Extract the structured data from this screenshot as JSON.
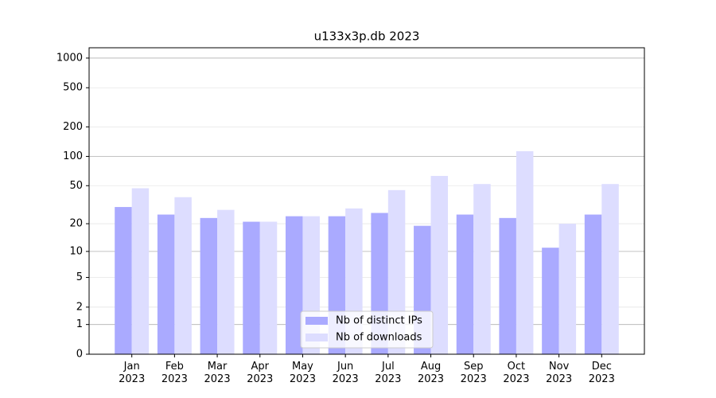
{
  "chart_data": {
    "type": "bar",
    "title": "u133x3p.db 2023",
    "scale": "log1p",
    "categories": [
      "Jan\n2023",
      "Feb\n2023",
      "Mar\n2023",
      "Apr\n2023",
      "May\n2023",
      "Jun\n2023",
      "Jul\n2023",
      "Aug\n2023",
      "Sep\n2023",
      "Oct\n2023",
      "Nov\n2023",
      "Dec\n2023"
    ],
    "series": [
      {
        "name": "Nb of distinct IPs",
        "color": "#aaaaff",
        "values": [
          30,
          25,
          23,
          21,
          24,
          24,
          26,
          19,
          25,
          23,
          11,
          25
        ]
      },
      {
        "name": "Nb of downloads",
        "color": "#ddddff",
        "values": [
          47,
          38,
          28,
          21,
          24,
          29,
          45,
          63,
          52,
          113,
          20,
          52
        ]
      }
    ],
    "ylim": [
      0,
      1272
    ],
    "yticks": [
      0,
      1,
      2,
      5,
      10,
      20,
      50,
      100,
      200,
      500,
      1000
    ],
    "grid": true,
    "legend": "lower center"
  }
}
